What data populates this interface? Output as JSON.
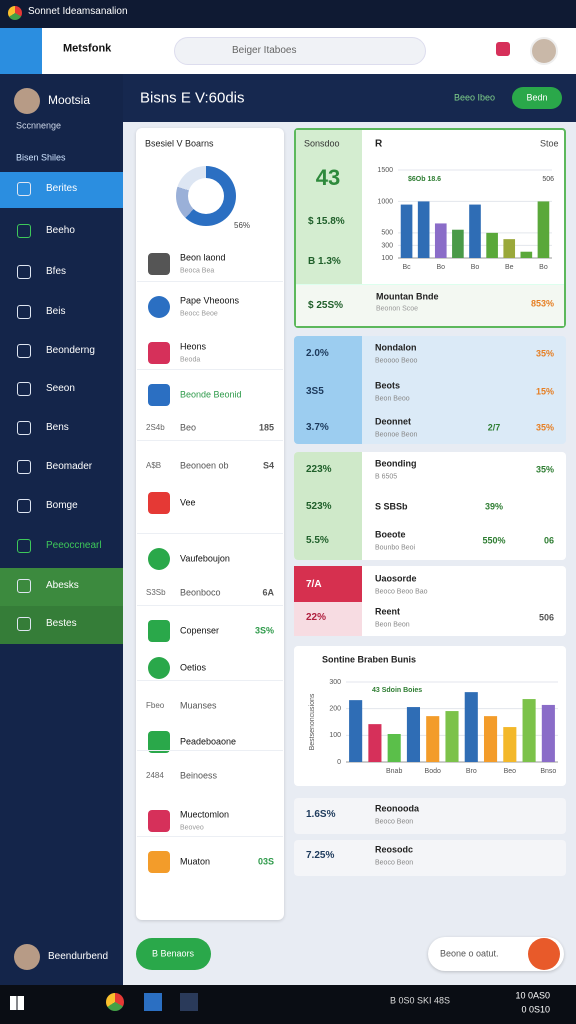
{
  "window": {
    "title": "Sonnet Ideamsanalion"
  },
  "header": {
    "logo": "Metsfonk",
    "search": "Beiger Itaboes"
  },
  "sidebar": {
    "user": "Mootsia",
    "subtitle": "Sccnnenge",
    "section": "Bisen Shiles",
    "items": [
      "Berites",
      "Beeho",
      "Bfes",
      "Beis",
      "Beonderng",
      "Seeon",
      "Bens",
      "Beomader",
      "Bomge",
      "Peeoccnearl",
      "Abesks",
      "Bestes"
    ],
    "footer_user": "Beendurbend"
  },
  "main": {
    "title": "Bisns E V:60dis",
    "link": "Beeo Ibeo",
    "button": "Bedn"
  },
  "list_card": {
    "title": "Bsesiel V Boarns",
    "donut_label": "56%",
    "rows": [
      {
        "title": "Beon laond",
        "sub": "Beoca Bea"
      },
      {
        "title": "Pape Vheoons",
        "sub": "Beocc Beoe"
      },
      {
        "title": "Heons",
        "sub": "Beoda"
      },
      {
        "title": "Beonde Beonid"
      },
      {
        "lead": "2S4b",
        "title": "Beo",
        "right": "185"
      },
      {
        "lead": "A$B",
        "title": "Beonoen ob",
        "right": "S4"
      },
      {
        "title": "Vee"
      },
      {
        "title": "Vaufeboujon"
      },
      {
        "lead": "S3Sb",
        "title": "Beonboco",
        "right": "6A"
      },
      {
        "title": "Copenser",
        "right": "3S%"
      },
      {
        "title": "Oetios"
      },
      {
        "lead": "Fbeo",
        "title": "Muanses"
      },
      {
        "title": "Peadeboaone"
      },
      {
        "lead": "2484",
        "title": "Beinoess"
      },
      {
        "title": "Muectomlon",
        "sub": "Beoveo"
      },
      {
        "title": "Muaton",
        "right": "03S"
      }
    ]
  },
  "stats": {
    "card_a": {
      "title": "Sonsdoo",
      "big": "43",
      "rows": [
        "$ 15.8%",
        "B 1.3%",
        "$ 25S%"
      ],
      "link": "Stoe",
      "footer": {
        "title": "Mountan Bnde",
        "sub": "Beonon Scoe",
        "right": "853%"
      }
    },
    "card_b": [
      {
        "value": "2.0%",
        "title": "Nondalon",
        "sub": "Beoooo Beoo",
        "right": "35%"
      },
      {
        "value": "3S5",
        "title": "Beots",
        "sub": "Beon Beoo",
        "right": "15%"
      },
      {
        "value": "3.7%",
        "title": "Deonnet",
        "sub": "Beonoe Beon",
        "mid": "2/7",
        "right": "35%"
      }
    ],
    "card_c": [
      {
        "value": "223%",
        "title": "Beonding",
        "sub": "B 6505",
        "right": "35%"
      },
      {
        "value": "523%",
        "title": "S SBSb",
        "mid": "39%"
      },
      {
        "value": "5.5%",
        "title": "Boeote",
        "sub": "Bounbo Beoi",
        "mid": "550%",
        "right": "06"
      }
    ],
    "card_d": [
      {
        "value": "7/A",
        "title": "Uaosorde",
        "sub": "Beoco Beoo Bao"
      },
      {
        "value": "22%",
        "title": "Reent",
        "sub": "Beon Beon",
        "right": "506"
      }
    ],
    "bottom": [
      {
        "value": "1.6S%",
        "title": "Reonooda",
        "sub": "Beoco Beon"
      },
      {
        "value": "7.25%",
        "title": "Reosodc",
        "sub": "Beoco Beon"
      }
    ]
  },
  "chart_data": [
    {
      "type": "bar",
      "title": "R",
      "subtitle": "$6Ob 18.6",
      "annotation": "506",
      "categories": [
        "Bc",
        null,
        "Bo",
        null,
        "Bo",
        null,
        "Be",
        null,
        "Bo"
      ],
      "values": [
        950,
        1000,
        650,
        550,
        950,
        500,
        400,
        200,
        1000
      ],
      "colors": [
        "#2f6db5",
        "#2f6db5",
        "#8a6cc8",
        "#4a9a48",
        "#2f6db5",
        "#5aa83a",
        "#9aa83a",
        "#5aa83a",
        "#5aa83a"
      ],
      "ylim": [
        100,
        1500
      ],
      "yticks": [
        100,
        300,
        500,
        1000,
        1500
      ]
    },
    {
      "type": "bar",
      "title": "Sontine Braben Bunis",
      "subtitle": "43 Sdoin Boies",
      "ylabel": "Bestsenoncusions",
      "categories": [
        null,
        null,
        "Bnab",
        null,
        "Bodo",
        null,
        "Bro",
        null,
        "Beo",
        null,
        "Bnso"
      ],
      "values": [
        232,
        142,
        105,
        206,
        172,
        191,
        262,
        172,
        131,
        236,
        214
      ],
      "colors": [
        "#2f6db5",
        "#d6305a",
        "#5bbf4a",
        "#2f6db5",
        "#f39c2a",
        "#7cc24a",
        "#2f6db5",
        "#f39c2a",
        "#f3b82a",
        "#7cc24a",
        "#8a6cc8"
      ],
      "ylim": [
        0,
        300
      ],
      "yticks": [
        0,
        100,
        200,
        300
      ]
    }
  ],
  "footer": {
    "button": "B Benaors",
    "search": "Beone o oatut."
  },
  "taskbar": {
    "tray": "B 0S0 SKI 48S",
    "time": "10 0AS0",
    "date": "0 0S10"
  }
}
